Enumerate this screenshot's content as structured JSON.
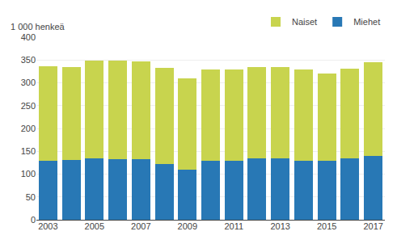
{
  "chart_data": {
    "type": "bar",
    "stacked": true,
    "ylabel": "1 000 henkeä",
    "categories": [
      "2003",
      null,
      "2005",
      null,
      "2007",
      null,
      "2009",
      null,
      "2011",
      null,
      "2013",
      null,
      "2015",
      null,
      "2017"
    ],
    "series": [
      {
        "name": "Miehet",
        "color": "#2878b5",
        "values": [
          130,
          131,
          134,
          133,
          133,
          122,
          110,
          129,
          130,
          134,
          134,
          130,
          130,
          135,
          140
        ]
      },
      {
        "name": "Naiset",
        "color": "#c8d44e",
        "values": [
          206,
          203,
          214,
          216,
          214,
          210,
          200,
          201,
          200,
          201,
          200,
          199,
          190,
          196,
          205
        ]
      }
    ],
    "ylim": [
      0,
      400
    ],
    "yticks": [
      0,
      50,
      100,
      150,
      200,
      250,
      300,
      350,
      400
    ],
    "grid": true,
    "legend": "upper right"
  }
}
